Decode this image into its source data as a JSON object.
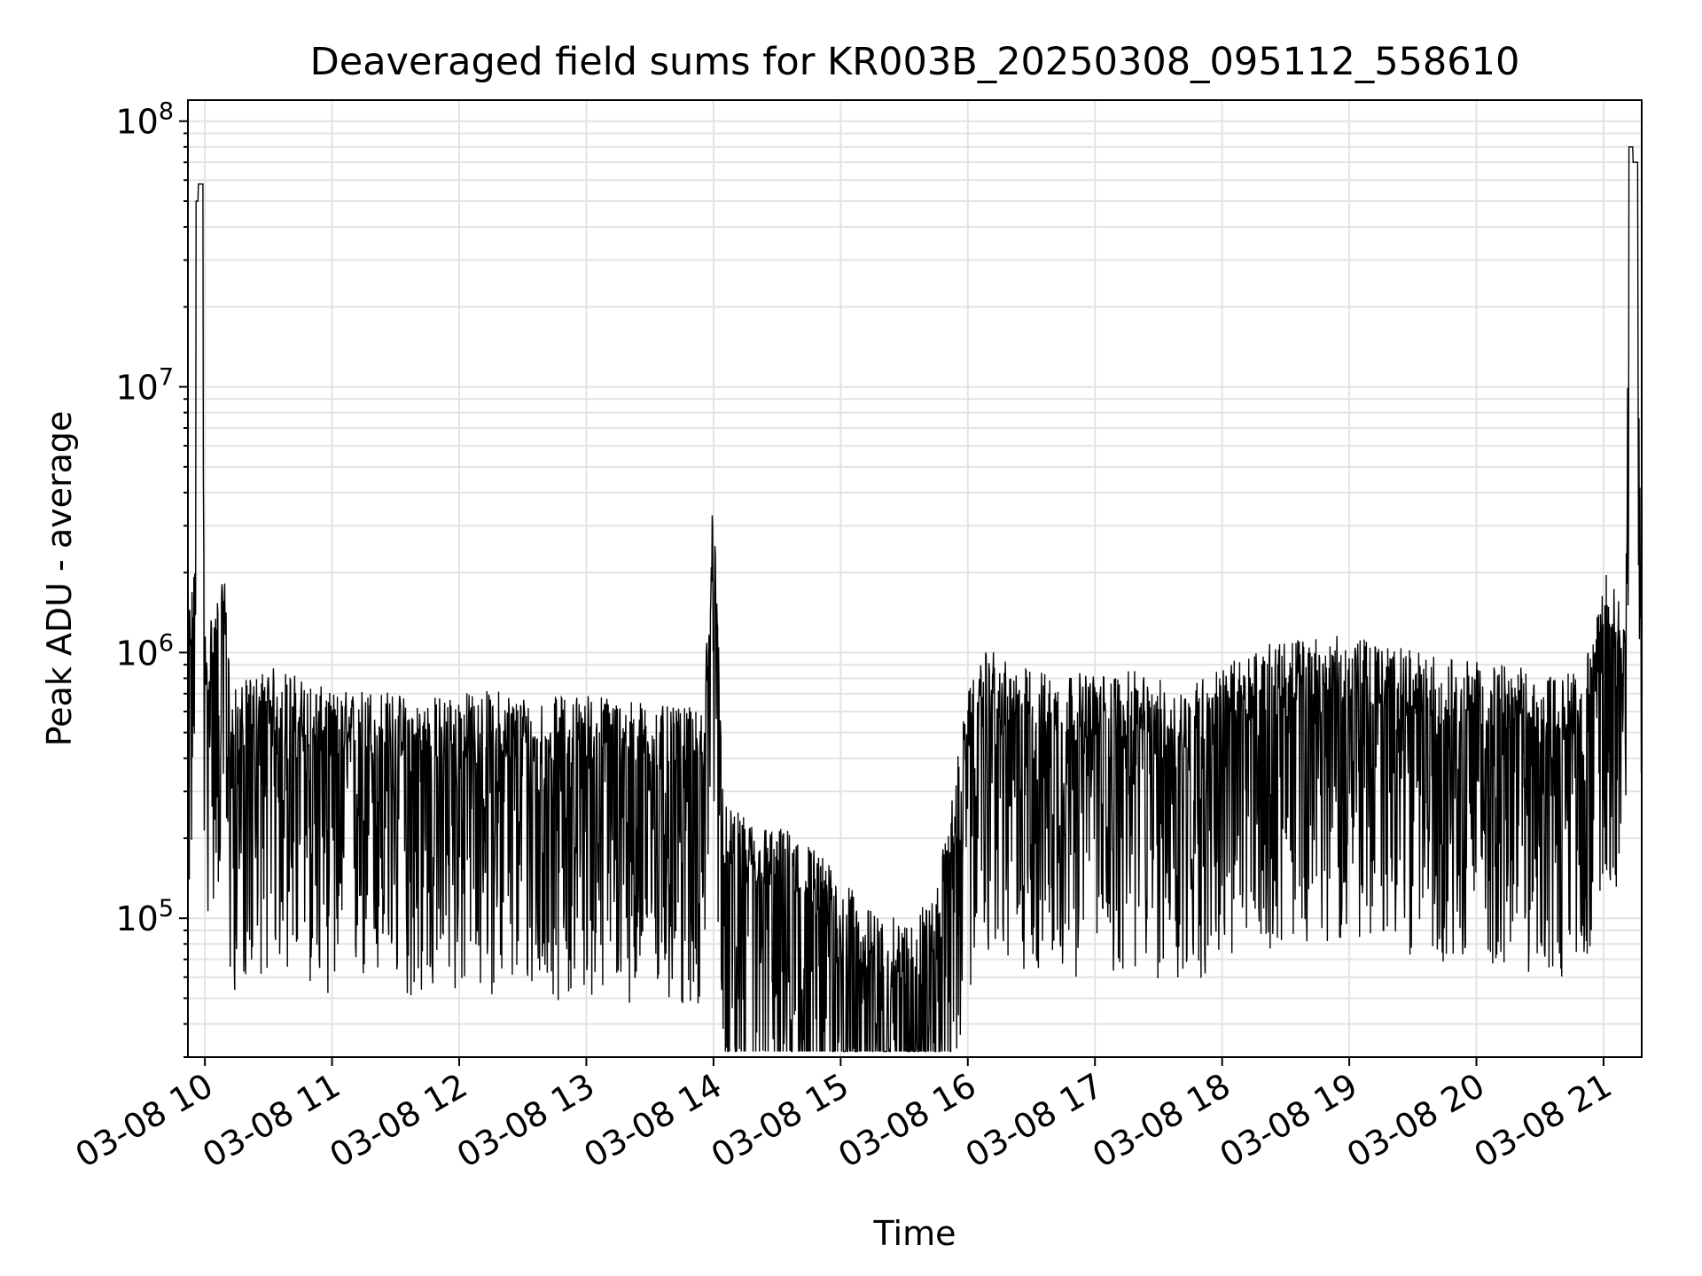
{
  "chart_data": {
    "type": "line",
    "title": "Deaveraged field sums for KR003B_20250308_095112_558610",
    "xlabel": "Time",
    "ylabel": "Peak ADU - average",
    "yscale": "log",
    "ylim": [
      30000,
      120000000
    ],
    "xlim": [
      "03-08 09:52",
      "03-08 21:18"
    ],
    "grid": true,
    "line_color": "#000000",
    "x_ticks": [
      "03-08 10",
      "03-08 11",
      "03-08 12",
      "03-08 13",
      "03-08 14",
      "03-08 15",
      "03-08 16",
      "03-08 17",
      "03-08 18",
      "03-08 19",
      "03-08 20",
      "03-08 21"
    ],
    "y_ticks": [
      {
        "value": 100000,
        "base": "10",
        "exp": "5"
      },
      {
        "value": 1000000,
        "base": "10",
        "exp": "6"
      },
      {
        "value": 10000000,
        "base": "10",
        "exp": "7"
      },
      {
        "value": 100000000,
        "base": "10",
        "exp": "8"
      }
    ],
    "series": [
      {
        "x": [
          "03-08 09:52",
          "03-08 09:55",
          "03-08 09:57",
          "03-08 09:58",
          "03-08 10:00",
          "03-08 10:05",
          "03-08 10:10",
          "03-08 10:12",
          "03-08 10:20",
          "03-08 10:30",
          "03-08 10:40",
          "03-08 11:00",
          "03-08 11:20",
          "03-08 11:40",
          "03-08 12:00",
          "03-08 12:20",
          "03-08 12:40",
          "03-08 13:00",
          "03-08 13:20",
          "03-08 13:40",
          "03-08 13:55",
          "03-08 14:00",
          "03-08 14:05",
          "03-08 14:20",
          "03-08 14:40",
          "03-08 14:50",
          "03-08 15:00",
          "03-08 15:15",
          "03-08 15:30",
          "03-08 15:45",
          "03-08 16:00",
          "03-08 16:10",
          "03-08 16:20",
          "03-08 16:40",
          "03-08 17:00",
          "03-08 17:20",
          "03-08 17:40",
          "03-08 18:00",
          "03-08 18:20",
          "03-08 18:40",
          "03-08 19:00",
          "03-08 19:20",
          "03-08 19:40",
          "03-08 20:00",
          "03-08 20:20",
          "03-08 20:40",
          "03-08 20:55",
          "03-08 21:00",
          "03-08 21:05",
          "03-08 21:10",
          "03-08 21:13",
          "03-08 21:15",
          "03-08 21:18"
        ],
        "values": [
          800000,
          1200000,
          50000000,
          58000000,
          700000,
          900000,
          1100000,
          400000,
          450000,
          500000,
          480000,
          400000,
          420000,
          380000,
          400000,
          410000,
          380000,
          400000,
          380000,
          350000,
          350000,
          2400000,
          150000,
          130000,
          120000,
          100000,
          80000,
          60000,
          55000,
          70000,
          400000,
          600000,
          500000,
          480000,
          470000,
          480000,
          420000,
          500000,
          600000,
          650000,
          650000,
          600000,
          550000,
          520000,
          500000,
          450000,
          600000,
          1200000,
          1000000,
          1000000,
          80000000,
          70000000,
          900000
        ]
      }
    ]
  }
}
